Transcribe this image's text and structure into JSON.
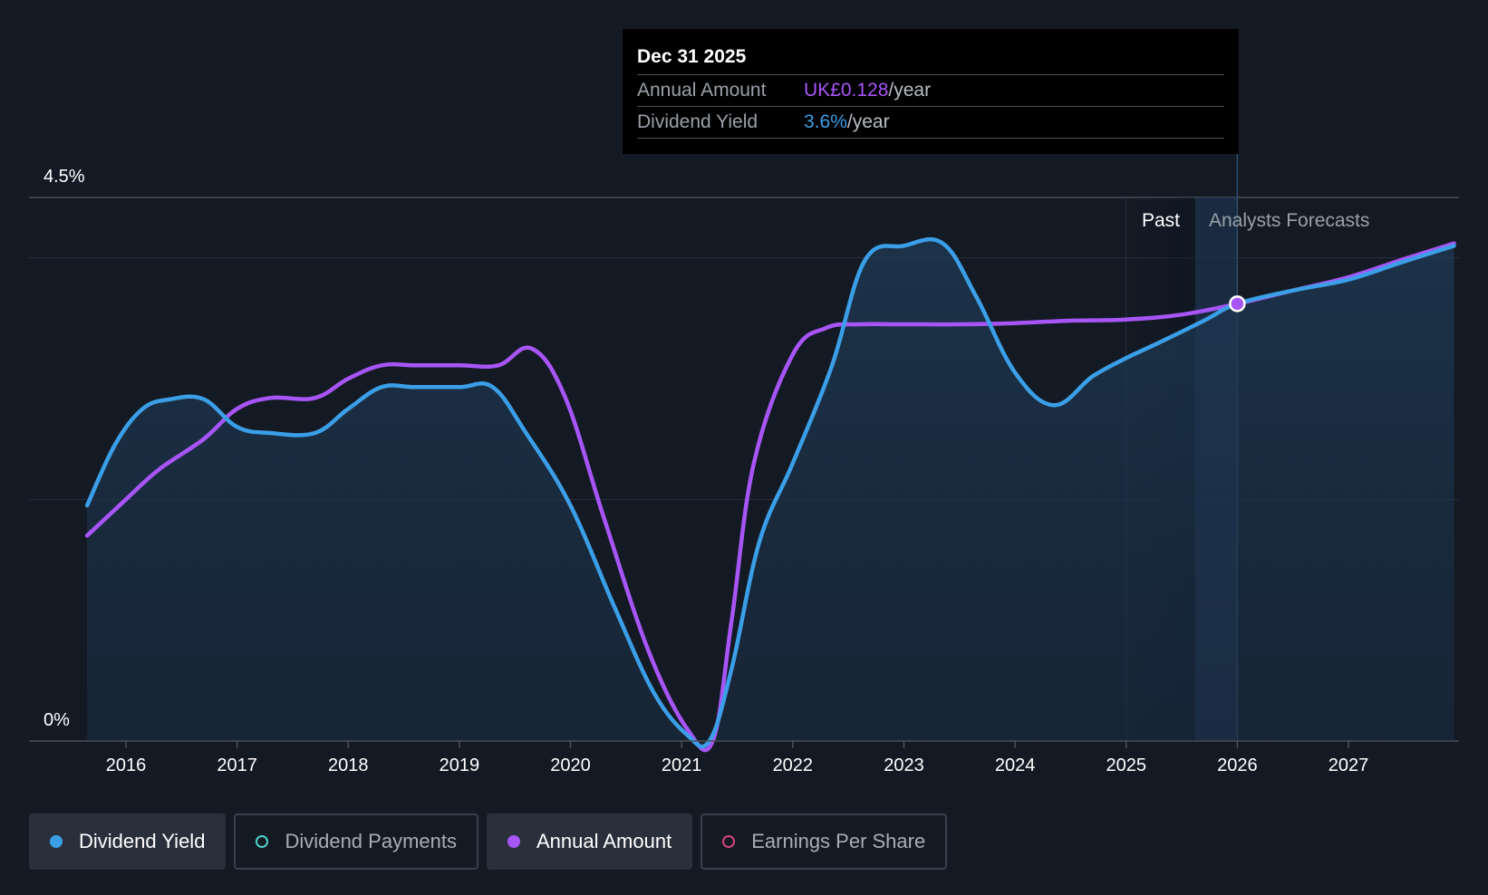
{
  "tooltip": {
    "date": "Dec 31 2025",
    "rows": [
      {
        "label": "Annual Amount",
        "value": "UK£0.128",
        "unit": "/year"
      },
      {
        "label": "Dividend Yield",
        "value": "3.6%",
        "unit": "/year"
      }
    ]
  },
  "regions": {
    "past": "Past",
    "forecast": "Analysts Forecasts"
  },
  "legend": [
    {
      "label": "Dividend Yield",
      "color": "#3b9fe8",
      "state": "active",
      "marker": "filled"
    },
    {
      "label": "Dividend Payments",
      "color": "#4fd1c5",
      "state": "inactive",
      "marker": "hollow"
    },
    {
      "label": "Annual Amount",
      "color": "#a855f7",
      "state": "active",
      "marker": "filled"
    },
    {
      "label": "Earnings Per Share",
      "color": "#d6457a",
      "state": "inactive",
      "marker": "hollow"
    }
  ],
  "chart_data": {
    "type": "line",
    "title": "",
    "xlabel": "",
    "ylabel": "",
    "xlim": [
      2015.5,
      2027.95
    ],
    "ylim": [
      0,
      4.5
    ],
    "y_tick_labels": [
      {
        "value": 4.5,
        "label": "4.5%"
      },
      {
        "value": 0,
        "label": "0%"
      }
    ],
    "gridlines_y": [
      2.0,
      4.0,
      4.5
    ],
    "x_ticks": [
      2016,
      2017,
      2018,
      2019,
      2020,
      2021,
      2022,
      2023,
      2024,
      2025,
      2026,
      2027
    ],
    "highlight_x": 2026.0,
    "past_band": [
      2025.0,
      2025.62
    ],
    "forecast_band": [
      2025.62,
      2026.0
    ],
    "series": [
      {
        "name": "Dividend Yield",
        "color": "#3b9fe8",
        "unit": "%",
        "filled": true,
        "points": [
          [
            2015.65,
            1.95
          ],
          [
            2015.9,
            2.45
          ],
          [
            2016.15,
            2.75
          ],
          [
            2016.4,
            2.83
          ],
          [
            2016.7,
            2.83
          ],
          [
            2017.0,
            2.6
          ],
          [
            2017.3,
            2.55
          ],
          [
            2017.7,
            2.55
          ],
          [
            2018.0,
            2.75
          ],
          [
            2018.3,
            2.93
          ],
          [
            2018.6,
            2.93
          ],
          [
            2019.0,
            2.93
          ],
          [
            2019.3,
            2.93
          ],
          [
            2019.6,
            2.55
          ],
          [
            2020.0,
            1.95
          ],
          [
            2020.4,
            1.1
          ],
          [
            2020.75,
            0.4
          ],
          [
            2021.05,
            0.05
          ],
          [
            2021.25,
            0.0
          ],
          [
            2021.45,
            0.6
          ],
          [
            2021.7,
            1.65
          ],
          [
            2022.0,
            2.3
          ],
          [
            2022.35,
            3.1
          ],
          [
            2022.65,
            3.98
          ],
          [
            2023.0,
            4.1
          ],
          [
            2023.35,
            4.12
          ],
          [
            2023.65,
            3.68
          ],
          [
            2024.0,
            3.05
          ],
          [
            2024.35,
            2.78
          ],
          [
            2024.7,
            3.02
          ],
          [
            2025.0,
            3.17
          ],
          [
            2025.3,
            3.3
          ],
          [
            2025.7,
            3.48
          ],
          [
            2026.0,
            3.62
          ],
          [
            2026.5,
            3.73
          ],
          [
            2027.0,
            3.82
          ],
          [
            2027.5,
            3.97
          ],
          [
            2027.95,
            4.1
          ]
        ]
      },
      {
        "name": "Annual Amount",
        "color": "#a855f7",
        "unit": "UK£/year",
        "filled": false,
        "points": [
          [
            2015.65,
            1.7
          ],
          [
            2016.0,
            2.0
          ],
          [
            2016.3,
            2.25
          ],
          [
            2016.7,
            2.5
          ],
          [
            2017.0,
            2.75
          ],
          [
            2017.3,
            2.84
          ],
          [
            2017.7,
            2.84
          ],
          [
            2018.0,
            3.0
          ],
          [
            2018.3,
            3.11
          ],
          [
            2018.6,
            3.11
          ],
          [
            2019.0,
            3.11
          ],
          [
            2019.35,
            3.11
          ],
          [
            2019.65,
            3.25
          ],
          [
            2019.95,
            2.85
          ],
          [
            2020.3,
            1.85
          ],
          [
            2020.7,
            0.75
          ],
          [
            2021.05,
            0.1
          ],
          [
            2021.28,
            0.0
          ],
          [
            2021.45,
            1.0
          ],
          [
            2021.65,
            2.3
          ],
          [
            2022.0,
            3.2
          ],
          [
            2022.3,
            3.42
          ],
          [
            2022.6,
            3.45
          ],
          [
            2023.0,
            3.45
          ],
          [
            2023.5,
            3.45
          ],
          [
            2024.0,
            3.46
          ],
          [
            2024.5,
            3.48
          ],
          [
            2025.0,
            3.49
          ],
          [
            2025.5,
            3.53
          ],
          [
            2026.0,
            3.62
          ],
          [
            2026.5,
            3.73
          ],
          [
            2027.0,
            3.84
          ],
          [
            2027.5,
            3.99
          ],
          [
            2027.95,
            4.12
          ]
        ]
      }
    ]
  }
}
